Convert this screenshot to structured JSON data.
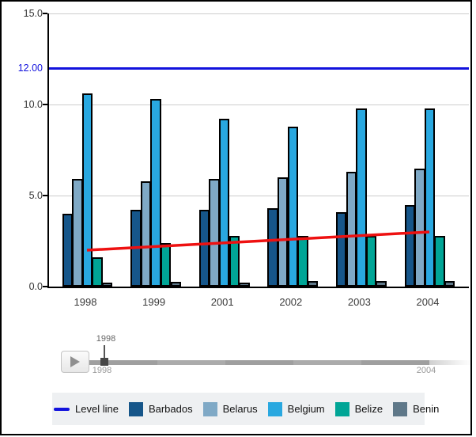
{
  "chart_data": {
    "type": "bar",
    "categories": [
      "1998",
      "1999",
      "2001",
      "2002",
      "2003",
      "2004"
    ],
    "series": [
      {
        "name": "Barbados",
        "color": "#16568a",
        "values": [
          4.0,
          4.2,
          4.2,
          4.3,
          4.1,
          4.5
        ]
      },
      {
        "name": "Belarus",
        "color": "#7fa9c6",
        "values": [
          5.9,
          5.8,
          5.9,
          6.0,
          6.3,
          6.5
        ]
      },
      {
        "name": "Belgium",
        "color": "#29a8e0",
        "values": [
          10.6,
          10.3,
          9.2,
          8.8,
          9.8,
          9.8
        ]
      },
      {
        "name": "Belize",
        "color": "#00a596",
        "values": [
          1.6,
          2.4,
          2.8,
          2.8,
          2.8,
          2.8
        ]
      },
      {
        "name": "Benin",
        "color": "#5f7889",
        "values": [
          0.2,
          0.25,
          0.2,
          0.3,
          0.3,
          0.3
        ]
      }
    ],
    "y_axis": {
      "min": 0,
      "max": 15,
      "grid": true,
      "ticks": [
        {
          "label": "15.0",
          "value": 15
        },
        {
          "label": "10.0",
          "value": 10
        },
        {
          "label": "5.0",
          "value": 5
        },
        {
          "label": "0.0",
          "value": 0
        }
      ]
    },
    "level_line": {
      "label": "Level line",
      "value": 12,
      "display": "12.00",
      "color": "#1212dd"
    },
    "trend_line": {
      "color": "#ee1111",
      "start": {
        "category": "1998",
        "value": 2.0
      },
      "end": {
        "category": "2004",
        "value": 3.0
      }
    },
    "legend_position": "bottom"
  },
  "timeline": {
    "handle_label": "1998",
    "range_start_label": "1998",
    "range_end_label": "2004",
    "current_year": 1998,
    "start_year": 1998,
    "end_year": 2004,
    "play_icon": "play-triangle"
  },
  "legend": {
    "items": [
      {
        "label": "Level line",
        "type": "line",
        "color": "#1212dd"
      },
      {
        "label": "Barbados",
        "type": "square",
        "color": "#16568a"
      },
      {
        "label": "Belarus",
        "type": "square",
        "color": "#7fa9c6"
      },
      {
        "label": "Belgium",
        "type": "square",
        "color": "#29a8e0"
      },
      {
        "label": "Belize",
        "type": "square",
        "color": "#00a596"
      },
      {
        "label": "Benin",
        "type": "square",
        "color": "#5f7889"
      }
    ]
  }
}
